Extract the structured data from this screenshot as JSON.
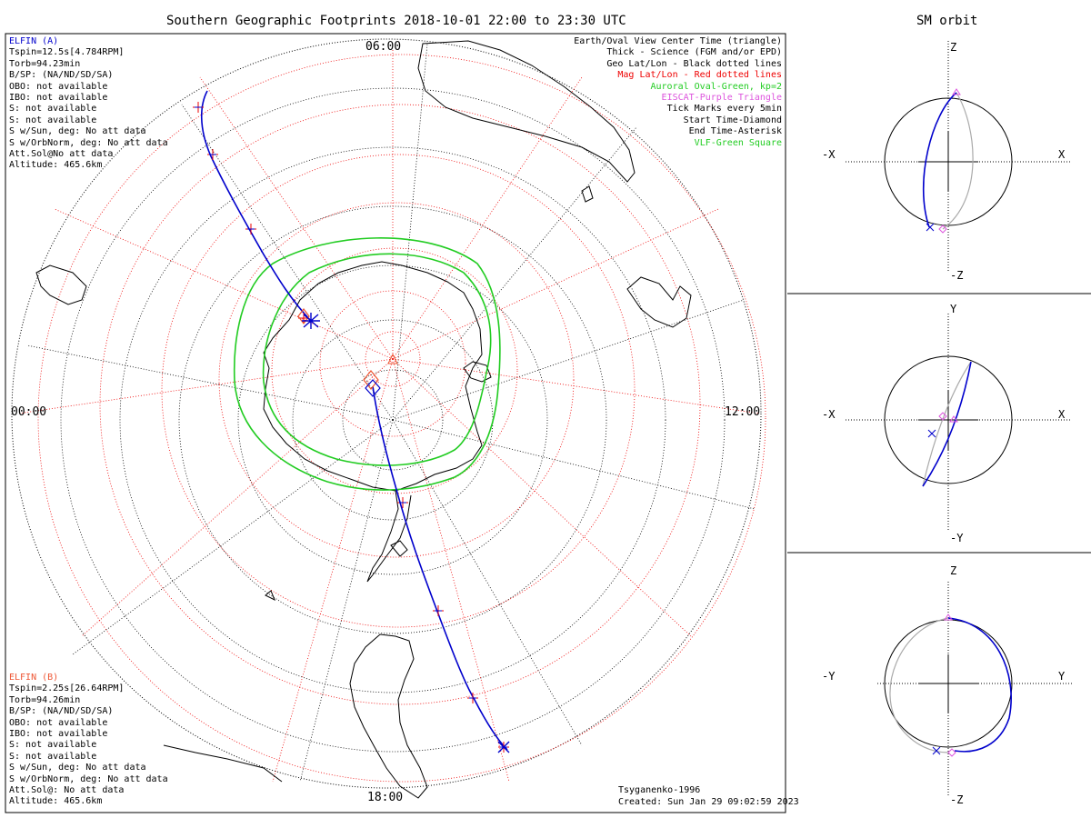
{
  "header": {
    "title": "Southern Geographic Footprints 2018-10-01 22:00 to 23:30 UTC",
    "orbit_title": "SM orbit"
  },
  "map": {
    "time_labels": [
      "06:00",
      "12:00",
      "18:00",
      "00:00"
    ],
    "legend": [
      {
        "text": "Earth/Oval View Center Time (triangle)",
        "color": "#000000"
      },
      {
        "text": "Thick - Science (FGM and/or EPD)",
        "color": "#000000"
      },
      {
        "text": "Geo Lat/Lon - Black dotted lines",
        "color": "#000000"
      },
      {
        "text": "Mag Lat/Lon - Red dotted lines",
        "color": "#ee0000"
      },
      {
        "text": "Auroral Oval-Green, kp=2",
        "color": "#22cc22"
      },
      {
        "text": "EISCAT-Purple Triangle",
        "color": "#dd55dd"
      },
      {
        "text": "Tick Marks every 5min",
        "color": "#000000"
      },
      {
        "text": "Start Time-Diamond",
        "color": "#000000"
      },
      {
        "text": "End Time-Asterisk",
        "color": "#000000"
      },
      {
        "text": "VLF-Green Square",
        "color": "#22cc22"
      }
    ],
    "elfin_a": {
      "name": "ELFIN (A)",
      "color": "#0000cc",
      "lines": [
        "Tspin=12.5s[4.784RPM]",
        "Torb=94.23min",
        "B/SP: (NA/ND/SD/SA)",
        "OBO: not available",
        "IBO: not available",
        "S: not available",
        "S: not available",
        "S w/Sun, deg: No att data",
        "S w/OrbNorm, deg: No att data",
        "Att.Sol@No att data",
        "Altitude: 465.6km"
      ]
    },
    "elfin_b": {
      "name": "ELFIN (B)",
      "color": "#ee5533",
      "lines": [
        "Tspin=2.25s[26.64RPM]",
        "Torb=94.26min",
        "B/SP: (NA/ND/SD/SA)",
        "OBO: not available",
        "IBO: not available",
        "S: not available",
        "S: not available",
        "S w/Sun, deg: No att data",
        "S w/OrbNorm, deg: No att data",
        "Att.Sol@: No att data",
        "Altitude: 465.6km"
      ]
    },
    "footer": {
      "model": "Tsyganenko-1996",
      "created": "Created: Sun Jan 29 09:02:59 2023"
    }
  },
  "orbit_panels": [
    {
      "top": "Z",
      "bottom": "-Z",
      "left": "-X",
      "right": "X"
    },
    {
      "top": "Y",
      "bottom": "-Y",
      "left": "-X",
      "right": "X"
    },
    {
      "top": "Z",
      "bottom": "-Z",
      "left": "-Y",
      "right": "Y"
    }
  ],
  "colors": {
    "track": "#0000cc",
    "oval": "#22cc22",
    "mag_grid": "#ee0000",
    "geo_grid": "#000000",
    "orbit_back": "#aaaaaa"
  }
}
